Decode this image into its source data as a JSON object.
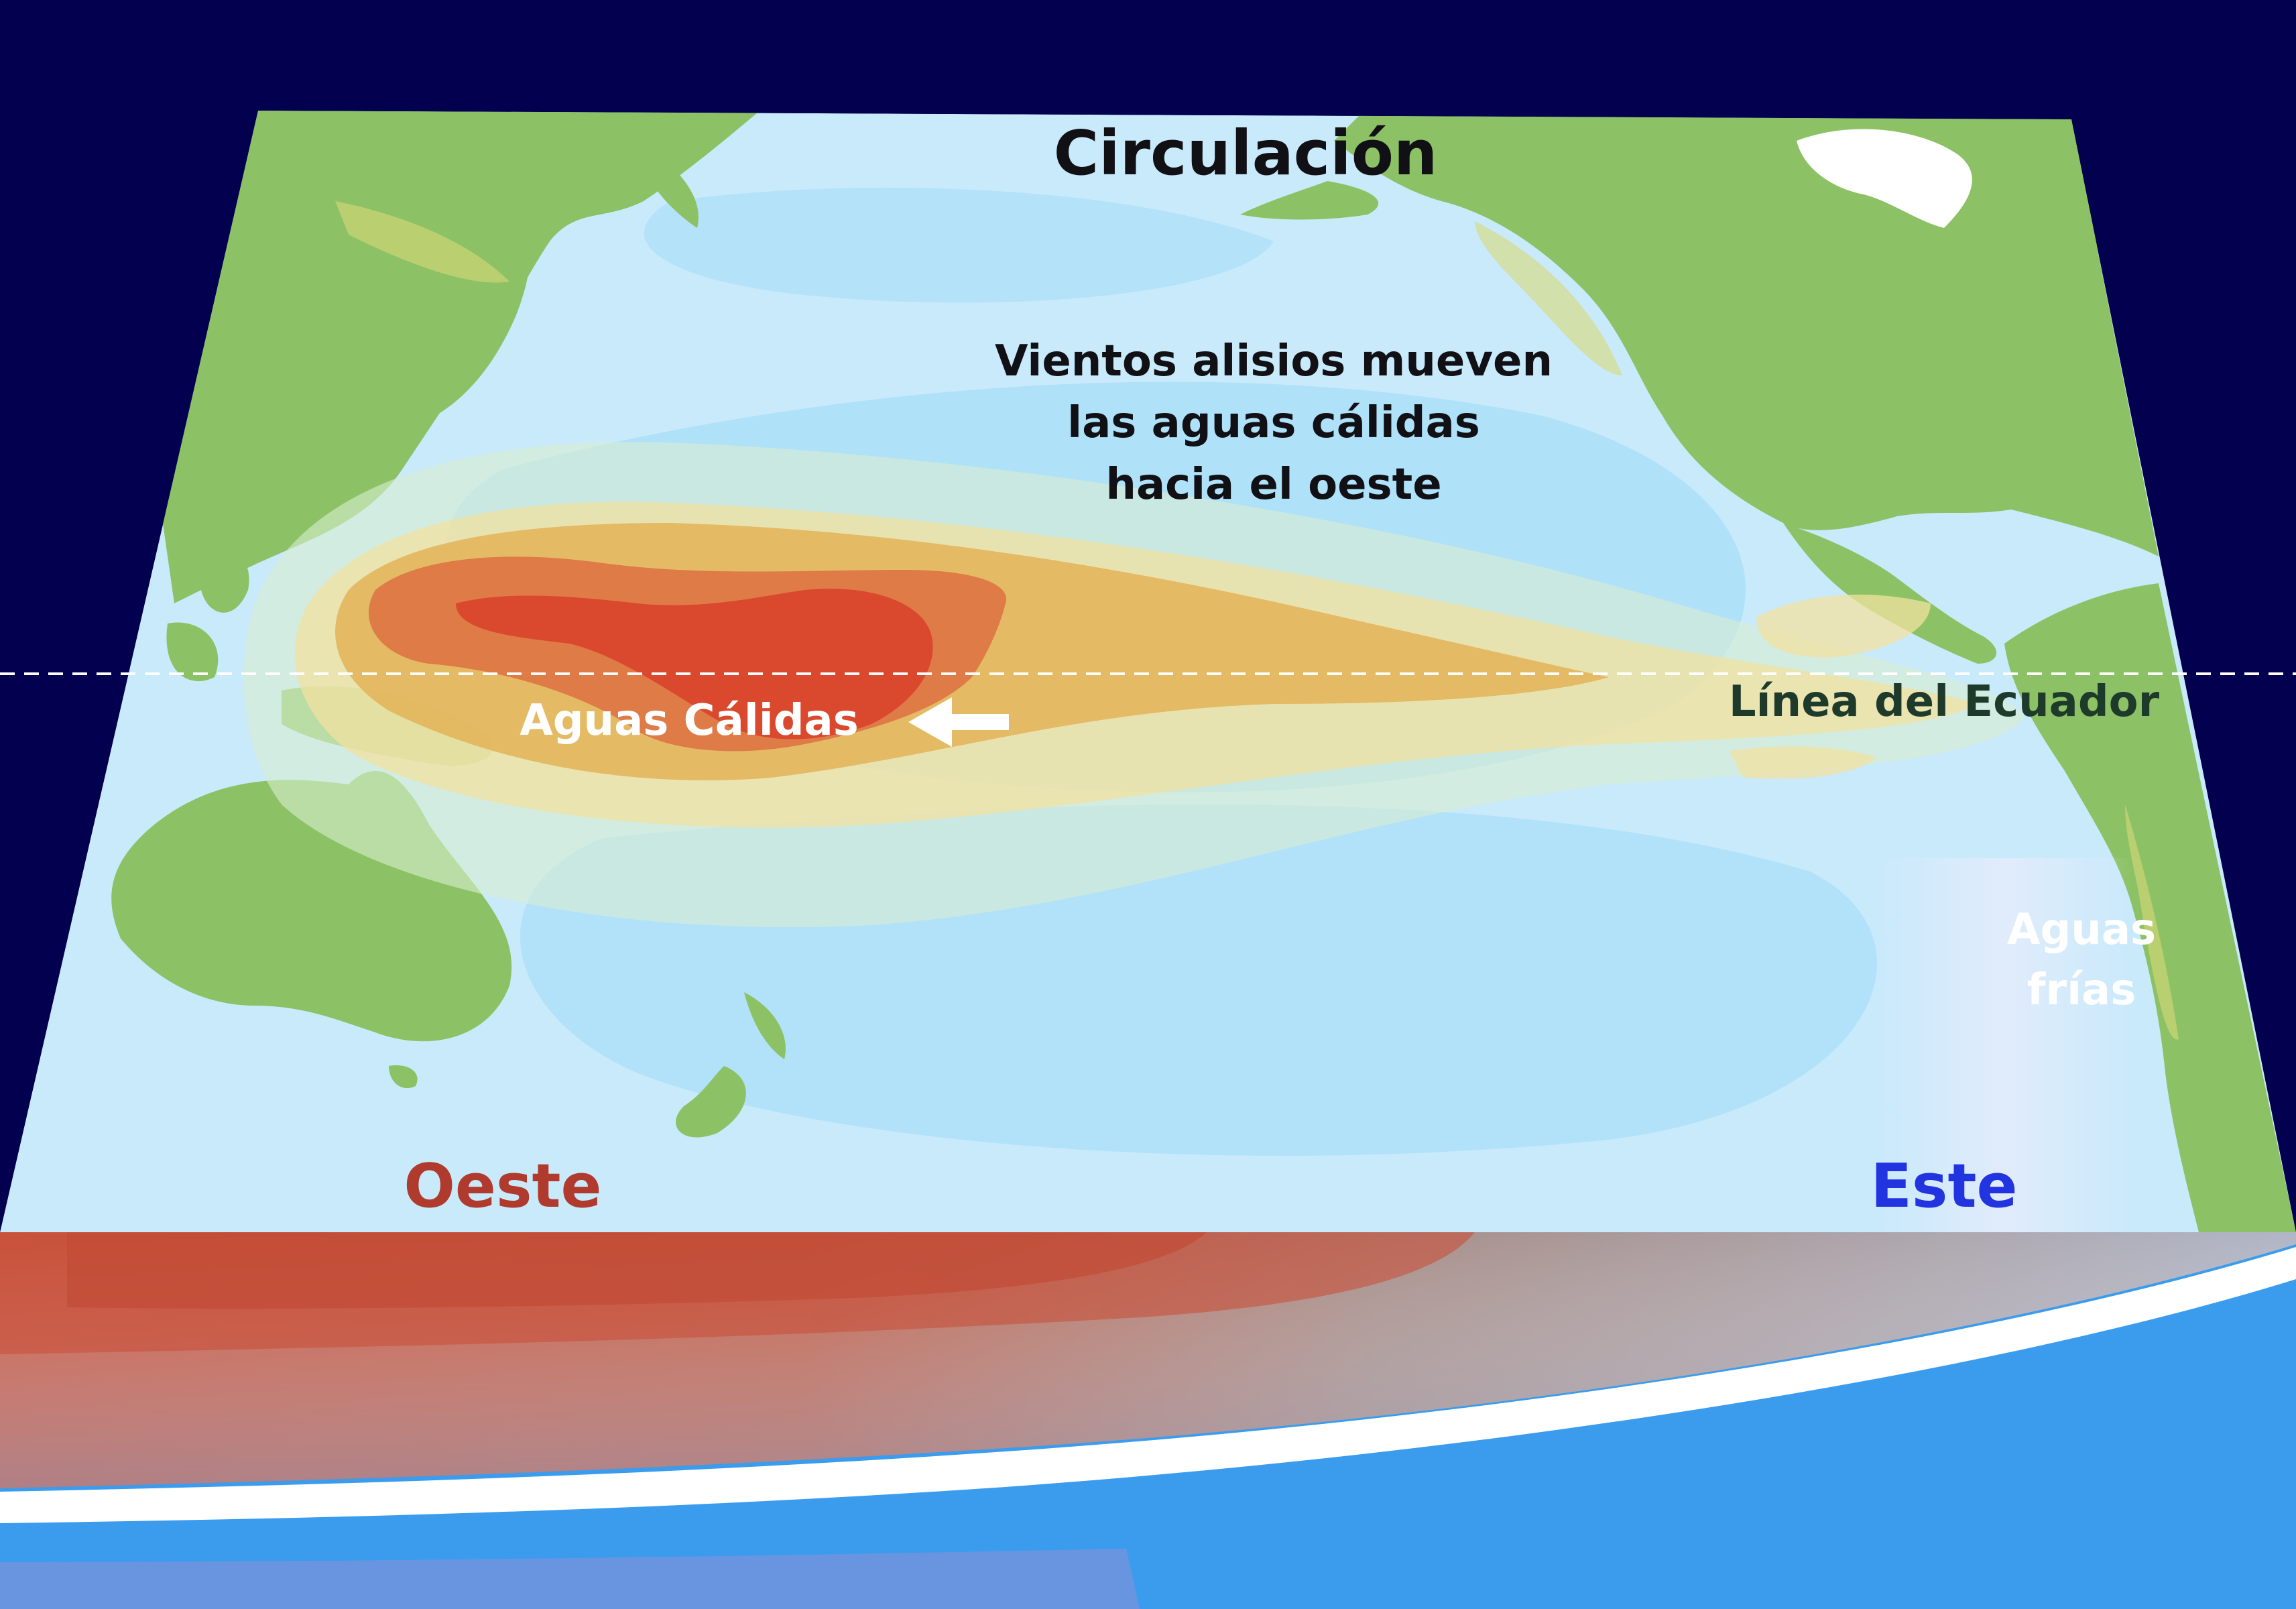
{
  "title": "Circulación",
  "description_lines": [
    "Vientos alisios mueven",
    "las aguas cálidas",
    "hacia el oeste"
  ],
  "labels": {
    "warm_waters": "Aguas Cálidas",
    "equator": "Línea del Ecuador",
    "cold_waters_line1": "Aguas",
    "cold_waters_line2": "frías",
    "west": "Oeste",
    "east": "Este"
  },
  "colors": {
    "background": "#02004f",
    "ocean": "#c9eafb",
    "land": "#8cc265",
    "warm_core": "#d9432a",
    "warm_outer": "#e9a24a",
    "west_label": "#b03a2e",
    "east_label": "#2233e0",
    "deep_ocean": "#3b9cee"
  },
  "icons": {
    "wind_arrow": "left-arrow-icon"
  }
}
